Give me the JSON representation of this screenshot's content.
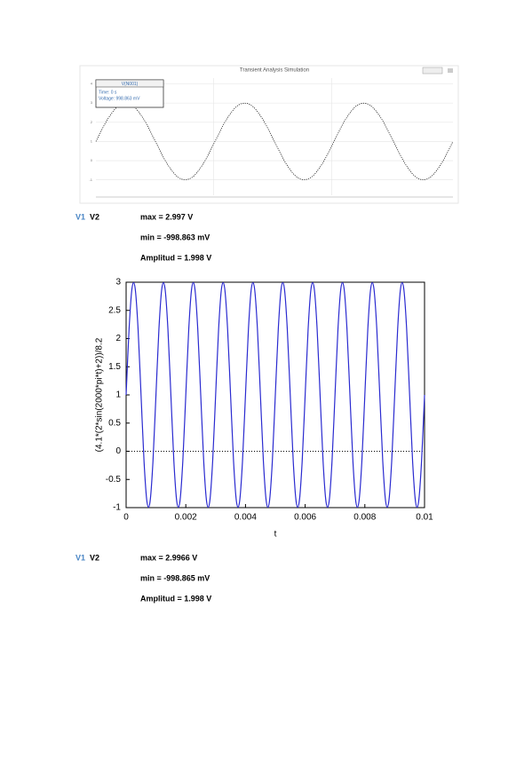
{
  "chart_data": [
    {
      "type": "line",
      "title": "Transient Analysis Simulation",
      "tooltip": {
        "header": "V(N001)",
        "lines": [
          "Time: 0 s",
          "Voltage: 998.863 mV"
        ]
      },
      "x": [
        0,
        0.0001,
        0.0002,
        0.0003,
        0.0004,
        0.0005,
        0.0006,
        0.0007,
        0.0008,
        0.0009,
        0.001,
        0.0011,
        0.0012,
        0.0013,
        0.0014,
        0.0015,
        0.0016,
        0.0017,
        0.0018,
        0.0019,
        0.002,
        0.0021,
        0.0022,
        0.0023,
        0.0024,
        0.0025,
        0.0026,
        0.0027,
        0.0028,
        0.0029,
        0.003
      ],
      "values": [
        1,
        2.176,
        2.902,
        2.902,
        2.176,
        1,
        -0.176,
        -0.902,
        -0.902,
        -0.176,
        1,
        2.176,
        2.902,
        2.902,
        2.176,
        1,
        -0.176,
        -0.902,
        -0.902,
        -0.176,
        1,
        2.176,
        2.902,
        2.902,
        2.176,
        1,
        -0.176,
        -0.902,
        -0.902,
        -0.176,
        1
      ],
      "color": "#222222",
      "xlim": [
        0,
        0.003
      ],
      "ylim": [
        -1.8,
        4.3
      ],
      "yticks": [
        -1,
        0,
        1,
        2,
        3,
        4
      ],
      "grid": true
    },
    {
      "type": "line",
      "ylabel": "(4.1*(2*sin(2000*pi*t)+2))/8.2",
      "xlabel": "t",
      "x": [
        0,
        0.0001,
        0.0002,
        0.0003,
        0.0004,
        0.0005,
        0.0006,
        0.0007,
        0.0008,
        0.0009,
        0.001,
        0.0011,
        0.0012,
        0.0013,
        0.0014,
        0.0015,
        0.0016,
        0.0017,
        0.0018,
        0.0019,
        0.002,
        0.0021,
        0.0022,
        0.0023,
        0.0024,
        0.0025,
        0.0026,
        0.0027,
        0.0028,
        0.0029,
        0.003,
        0.0031,
        0.0032,
        0.0033,
        0.0034,
        0.0035,
        0.0036,
        0.0037,
        0.0038,
        0.0039,
        0.004,
        0.0041,
        0.0042,
        0.0043,
        0.0044,
        0.0045,
        0.0046,
        0.0047,
        0.0048,
        0.0049,
        0.005,
        0.0051,
        0.0052,
        0.0053,
        0.0054,
        0.0055,
        0.0056,
        0.0057,
        0.0058,
        0.0059,
        0.006,
        0.0061,
        0.0062,
        0.0063,
        0.0064,
        0.0065,
        0.0066,
        0.0067,
        0.0068,
        0.0069,
        0.007,
        0.0071,
        0.0072,
        0.0073,
        0.0074,
        0.0075,
        0.0076,
        0.0077,
        0.0078,
        0.0079,
        0.008,
        0.0081,
        0.0082,
        0.0083,
        0.0084,
        0.0085,
        0.0086,
        0.0087,
        0.0088,
        0.0089,
        0.009,
        0.0091,
        0.0092,
        0.0093,
        0.0094,
        0.0095,
        0.0096,
        0.0097,
        0.0098,
        0.0099,
        0.01
      ],
      "values": [
        1,
        2.176,
        2.902,
        2.902,
        2.176,
        1,
        -0.176,
        -0.902,
        -0.902,
        -0.176,
        1,
        2.176,
        2.902,
        2.902,
        2.176,
        1,
        -0.176,
        -0.902,
        -0.902,
        -0.176,
        1,
        2.176,
        2.902,
        2.902,
        2.176,
        1,
        -0.176,
        -0.902,
        -0.902,
        -0.176,
        1,
        2.176,
        2.902,
        2.902,
        2.176,
        1,
        -0.176,
        -0.902,
        -0.902,
        -0.176,
        1,
        2.176,
        2.902,
        2.902,
        2.176,
        1,
        -0.176,
        -0.902,
        -0.902,
        -0.176,
        1,
        2.176,
        2.902,
        2.902,
        2.176,
        1,
        -0.176,
        -0.902,
        -0.902,
        -0.176,
        1,
        2.176,
        2.902,
        2.902,
        2.176,
        1,
        -0.176,
        -0.902,
        -0.902,
        -0.176,
        1,
        2.176,
        2.902,
        2.902,
        2.176,
        1,
        -0.176,
        -0.902,
        -0.902,
        -0.176,
        1,
        2.176,
        2.902,
        2.902,
        2.176,
        1,
        -0.176,
        -0.902,
        -0.902,
        -0.176,
        1,
        2.176,
        2.902,
        2.902,
        2.176,
        1,
        -0.176,
        -0.902,
        -0.902,
        -0.176,
        1
      ],
      "color": "#2b2bd0",
      "xlim": [
        0,
        0.01
      ],
      "ylim": [
        -1,
        3
      ],
      "xticks": [
        0,
        0.002,
        0.004,
        0.006,
        0.008,
        0.01
      ],
      "yticks": [
        -1,
        -0.5,
        0,
        0.5,
        1,
        1.5,
        2,
        2.5,
        3
      ],
      "zero_line": true
    }
  ],
  "readouts": [
    {
      "v1": "V1",
      "v2": "V2",
      "lines": [
        "max = 2.997 V",
        "min = -998.863 mV",
        "Amplitud = 1.998 V"
      ]
    },
    {
      "v1": "V1",
      "v2": "V2",
      "lines": [
        "max = 2.9966 V",
        "min = -998.865 mV",
        "Amplitud = 1.998 V"
      ]
    }
  ]
}
